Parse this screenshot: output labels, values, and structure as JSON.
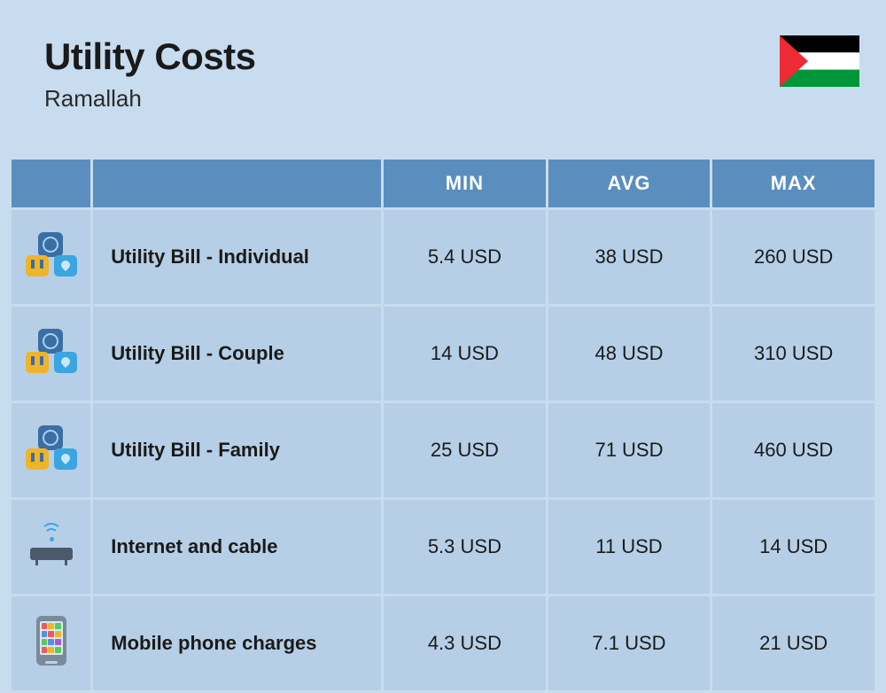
{
  "header": {
    "title": "Utility Costs",
    "subtitle": "Ramallah"
  },
  "flag": {
    "name": "flag-palestine",
    "stripes": [
      "#000000",
      "#ffffff",
      "#009639"
    ],
    "triangle": "#ee2a35"
  },
  "table": {
    "columns": {
      "min": "MIN",
      "avg": "AVG",
      "max": "MAX"
    },
    "rows": [
      {
        "icon": "utility",
        "label": "Utility Bill - Individual",
        "min": "5.4 USD",
        "avg": "38 USD",
        "max": "260 USD"
      },
      {
        "icon": "utility",
        "label": "Utility Bill - Couple",
        "min": "14 USD",
        "avg": "48 USD",
        "max": "310 USD"
      },
      {
        "icon": "utility",
        "label": "Utility Bill - Family",
        "min": "25 USD",
        "avg": "71 USD",
        "max": "460 USD"
      },
      {
        "icon": "router",
        "label": "Internet and cable",
        "min": "5.3 USD",
        "avg": "11 USD",
        "max": "14 USD"
      },
      {
        "icon": "phone",
        "label": "Mobile phone charges",
        "min": "4.3 USD",
        "avg": "7.1 USD",
        "max": "21 USD"
      }
    ]
  },
  "colors": {
    "page_bg": "#c8dcef",
    "header_bg": "#5a8ebf",
    "header_text": "#ffffff",
    "cell_bg": "#b6cfe6",
    "text": "#1a1a1a"
  },
  "phone_app_colors": [
    "#f05a5a",
    "#f0b429",
    "#5ac85a",
    "#5a8ee0",
    "#f05a5a",
    "#f0b429",
    "#5ac85a",
    "#5a8ee0",
    "#a05ae0",
    "#f05a5a",
    "#f0b429",
    "#5ac85a"
  ]
}
